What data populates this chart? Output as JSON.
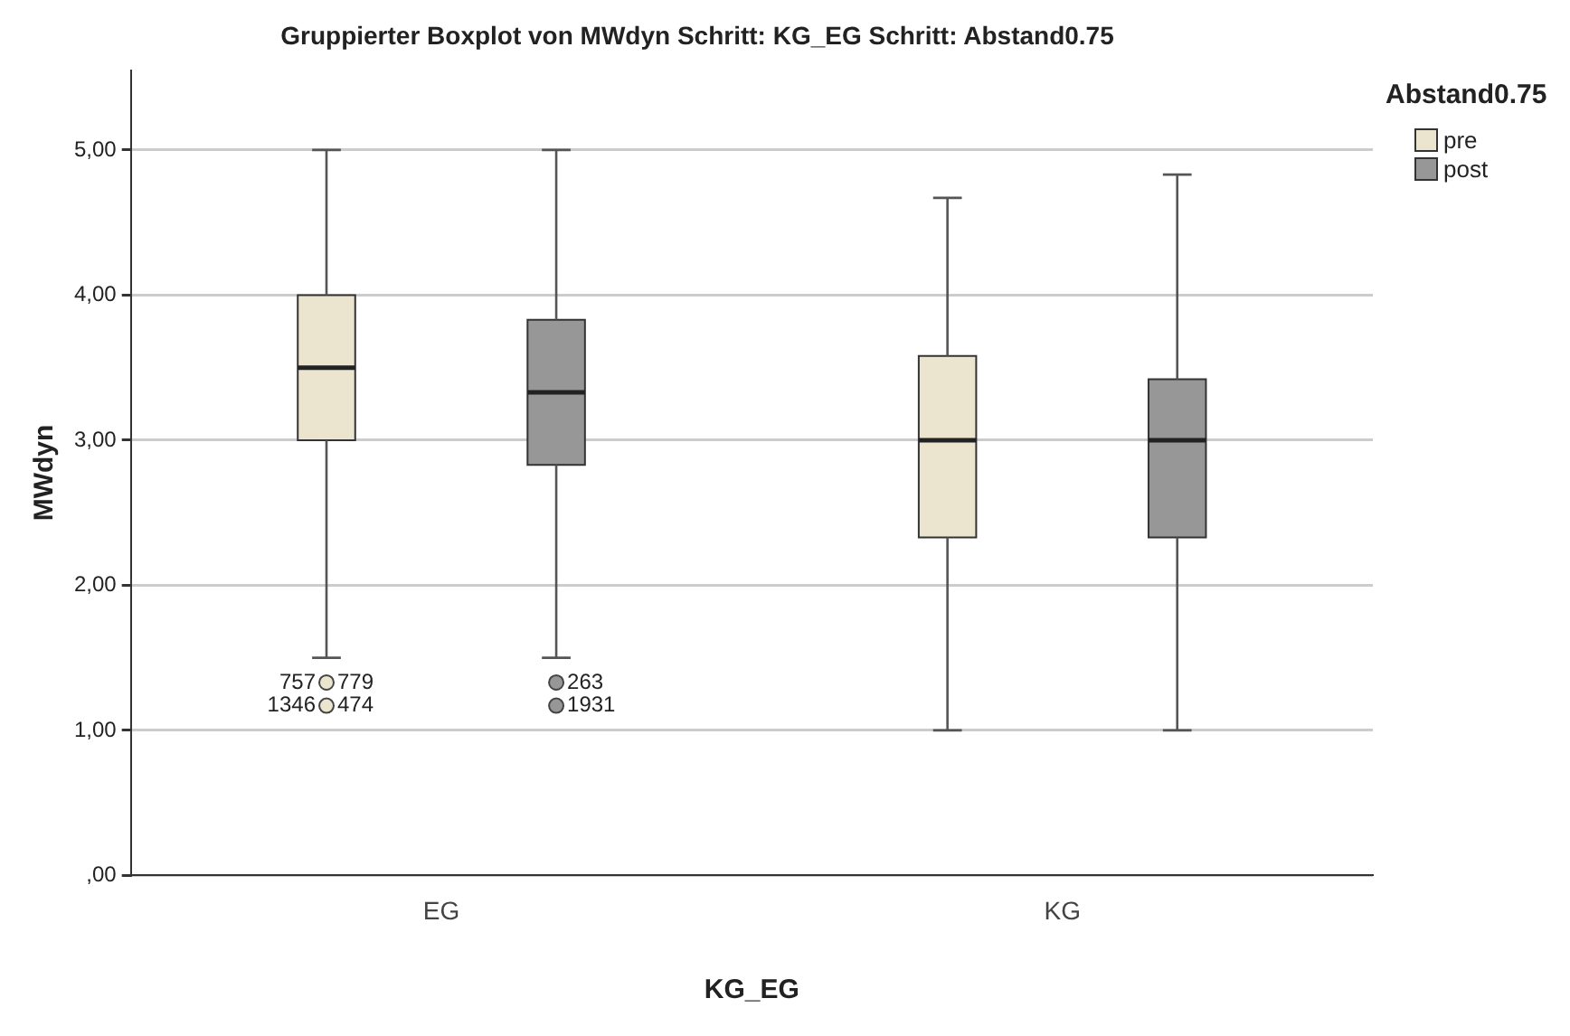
{
  "chart_data": {
    "type": "box",
    "title": "Gruppierter Boxplot von MWdyn Schritt: KG_EG Schritt: Abstand0.75",
    "xlabel": "KG_EG",
    "ylabel": "MWdyn",
    "legend_title": "Abstand0.75",
    "categories": [
      "EG",
      "KG"
    ],
    "series": [
      {
        "name": "pre",
        "color": "#ebe5cf",
        "boxes": [
          {
            "low": 1.5,
            "q1": 3.0,
            "median": 3.5,
            "q3": 4.0,
            "high": 5.0,
            "outliers": [
              1.33,
              1.17
            ]
          },
          {
            "low": 1.0,
            "q1": 2.33,
            "median": 3.0,
            "q3": 3.58,
            "high": 4.67
          }
        ]
      },
      {
        "name": "post",
        "color": "#979797",
        "boxes": [
          {
            "low": 1.5,
            "q1": 2.83,
            "median": 3.33,
            "q3": 3.83,
            "high": 5.0,
            "outliers": [
              1.33,
              1.17
            ]
          },
          {
            "low": 1.0,
            "q1": 2.33,
            "median": 3.0,
            "q3": 3.42,
            "high": 4.83
          }
        ]
      }
    ],
    "ylim": [
      0,
      5.55
    ],
    "yticks": [
      {
        "value": 0,
        "label": ",00"
      },
      {
        "value": 1,
        "label": "1,00"
      },
      {
        "value": 2,
        "label": "2,00"
      },
      {
        "value": 3,
        "label": "3,00"
      },
      {
        "value": 4,
        "label": "4,00"
      },
      {
        "value": 5,
        "label": "5,00"
      }
    ],
    "grid": "y",
    "legend": "top right",
    "annotations": [
      "779",
      "474",
      "263",
      "1931",
      "757",
      "1346"
    ]
  }
}
